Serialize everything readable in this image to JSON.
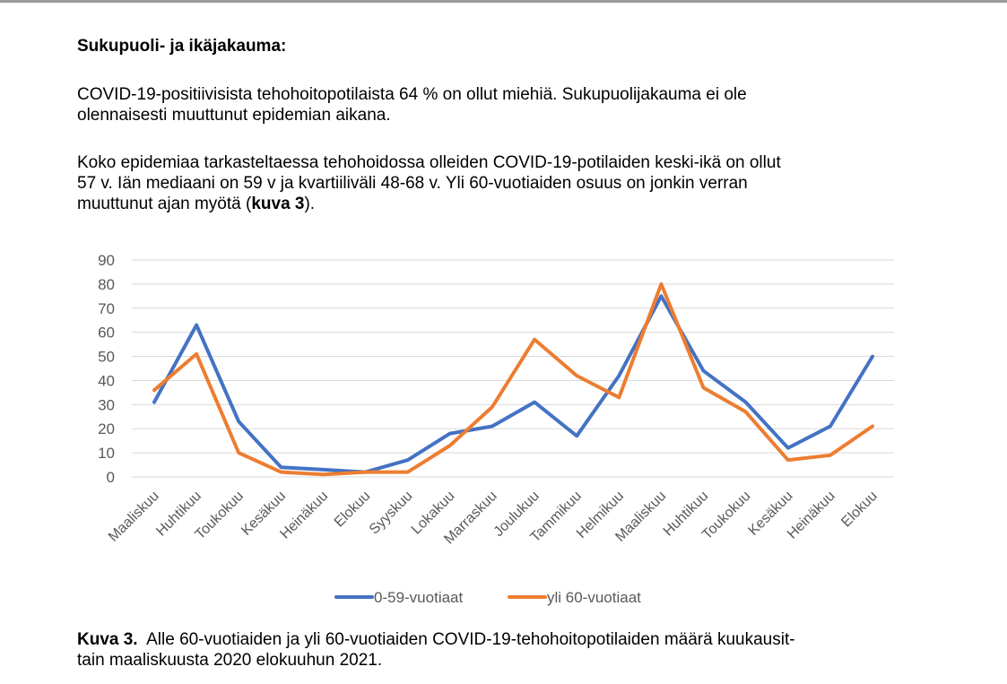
{
  "heading": "Sukupuoli- ja ikäjakauma:",
  "paragraph1": {
    "line1": "COVID-19-positiivisista tehohoitopotilaista 64 % on ollut miehiä. Sukupuolijakauma ei ole",
    "line2": "olennaisesti muuttunut epidemian aikana."
  },
  "paragraph2": {
    "line1": "Koko epidemiaa tarkasteltaessa tehohoidossa olleiden COVID-19-potilaiden keski-ikä on ollut",
    "line2": "57 v. Iän mediaani on 59 v ja kvartiiliväli 48-68 v. Yli 60-vuotiaiden osuus on jonkin verran",
    "line3_start": "muuttunut ajan myötä (",
    "line3_bold": "kuva 3",
    "line3_end": ")."
  },
  "caption": {
    "label": "Kuva 3.",
    "line1": "Alle 60-vuotiaiden ja yli 60-vuotiaiden COVID-19-tehohoitopotilaiden määrä kuukausit-",
    "line2": "tain maaliskuusta 2020 elokuuhun 2021."
  },
  "chart_data": {
    "type": "line",
    "title": "",
    "xlabel": "",
    "ylabel": "",
    "ylim": [
      0,
      90
    ],
    "yticks": [
      0,
      10,
      20,
      30,
      40,
      50,
      60,
      70,
      80,
      90
    ],
    "grid": true,
    "legend_position": "bottom",
    "categories": [
      "Maaliskuu",
      "Huhtikuu",
      "Toukokuu",
      "Kesäkuu",
      "Heinäkuu",
      "Elokuu",
      "Syyskuu",
      "Lokakuu",
      "Marraskuu",
      "Joulukuu",
      "Tammikuu",
      "Helmikuu",
      "Maaliskuu",
      "Huhtikuu",
      "Toukokuu",
      "Kesäkuu",
      "Heinäkuu",
      "Elokuu"
    ],
    "series": [
      {
        "name": "0-59-vuotiaat",
        "color": "#4472C4",
        "values": [
          31,
          63,
          23,
          4,
          3,
          2,
          7,
          18,
          21,
          31,
          17,
          42,
          75,
          44,
          31,
          12,
          21,
          50
        ]
      },
      {
        "name": "yli 60-vuotiaat",
        "color": "#ED7D31",
        "values": [
          36,
          51,
          10,
          2,
          1,
          2,
          2,
          13,
          29,
          57,
          42,
          33,
          80,
          37,
          27,
          7,
          9,
          21
        ]
      }
    ]
  }
}
